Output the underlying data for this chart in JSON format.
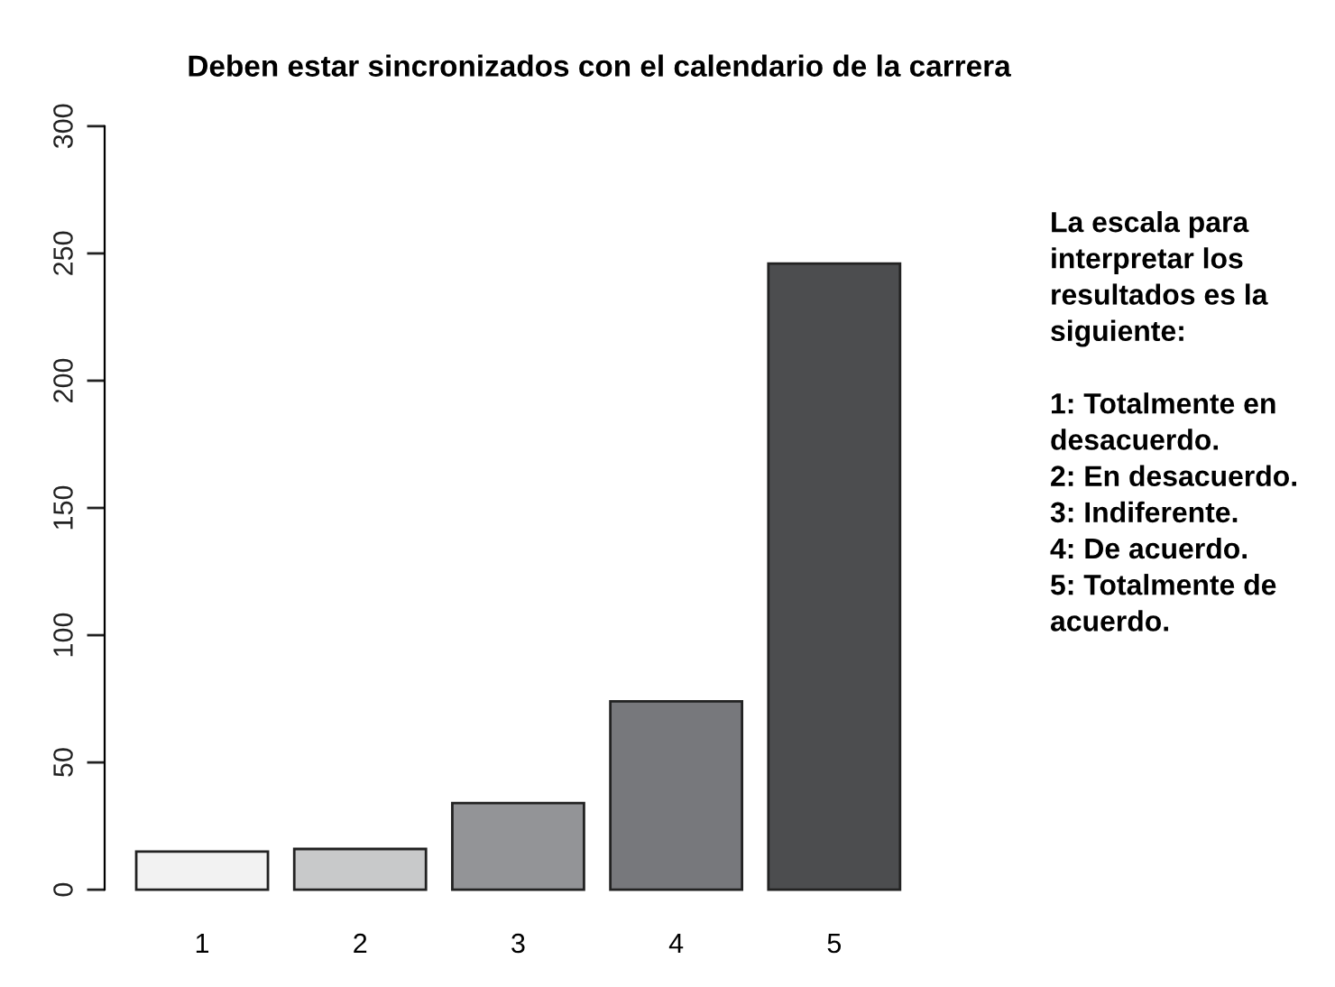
{
  "chart_data": {
    "type": "bar",
    "title": "Deben estar sincronizados con el calendario de la carrera",
    "categories": [
      "1",
      "2",
      "3",
      "4",
      "5"
    ],
    "values": [
      15,
      16,
      34,
      74,
      246
    ],
    "colors": [
      "#f2f2f2",
      "#c8c9ca",
      "#939497",
      "#77787c",
      "#4c4d4f"
    ],
    "ylim": [
      0,
      300
    ],
    "yticks": [
      0,
      50,
      100,
      150,
      200,
      250,
      300
    ],
    "grid": false,
    "annotations": [
      "La escala para\ninterpretar los\nresultados es la\nsiguiente:\n\n1: Totalmente en\ndesacuerdo.\n2: En desacuerdo.\n3: Indiferente.\n4: De acuerdo.\n5: Totalmente de\nacuerdo."
    ]
  }
}
